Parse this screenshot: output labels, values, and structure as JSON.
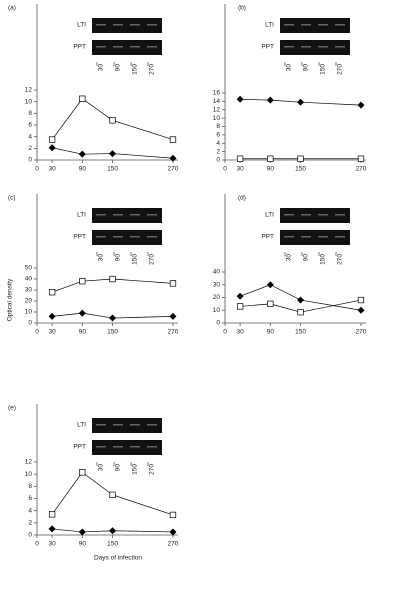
{
  "figure": {
    "y_label": "Optical density",
    "x_label": "Days of infection"
  },
  "chart_data": [
    {
      "type": "line",
      "panel": "(a)",
      "blot": {
        "rows": [
          "LTI",
          "PPT"
        ],
        "lanes": [
          "30",
          "90",
          "150",
          "270"
        ]
      },
      "x": [
        30,
        90,
        150,
        270
      ],
      "series": [
        {
          "marker": "square",
          "color": "#000000",
          "values": [
            3.5,
            10.5,
            6.8,
            3.5
          ]
        },
        {
          "marker": "diamond",
          "color": "#000000",
          "values": [
            2.1,
            1.0,
            1.1,
            0.3
          ]
        }
      ],
      "xlim": [
        0,
        280
      ],
      "xticks": [
        0,
        30,
        90,
        150,
        270
      ],
      "ylim": [
        0,
        12
      ],
      "yticks": [
        0,
        2,
        4,
        6,
        8,
        10,
        12
      ]
    },
    {
      "type": "line",
      "panel": "(b)",
      "blot": {
        "rows": [
          "LTI",
          "PPT"
        ],
        "lanes": [
          "30",
          "90",
          "150",
          "270"
        ]
      },
      "x": [
        30,
        90,
        150,
        270
      ],
      "series": [
        {
          "marker": "square",
          "color": "#000000",
          "values": [
            0.3,
            0.3,
            0.3,
            0.3
          ]
        },
        {
          "marker": "diamond",
          "color": "#000000",
          "values": [
            14.5,
            14.3,
            13.8,
            13.1
          ]
        }
      ],
      "xlim": [
        0,
        280
      ],
      "xticks": [
        0,
        30,
        90,
        150,
        270
      ],
      "ylim": [
        0,
        16
      ],
      "yticks": [
        0,
        2,
        4,
        6,
        8,
        10,
        12,
        14,
        16
      ]
    },
    {
      "type": "line",
      "panel": "(c)",
      "blot": {
        "rows": [
          "LTI",
          "PPT"
        ],
        "lanes": [
          "30",
          "90",
          "150",
          "270"
        ]
      },
      "x": [
        30,
        90,
        150,
        270
      ],
      "series": [
        {
          "marker": "square",
          "color": "#000000",
          "values": [
            28,
            38,
            40,
            36
          ]
        },
        {
          "marker": "diamond",
          "color": "#000000",
          "values": [
            6,
            9,
            4.5,
            6
          ]
        }
      ],
      "xlim": [
        0,
        280
      ],
      "xticks": [
        0,
        30,
        90,
        150,
        270
      ],
      "ylim": [
        0,
        50
      ],
      "yticks": [
        0,
        10,
        20,
        30,
        40,
        50
      ]
    },
    {
      "type": "line",
      "panel": "(d)",
      "blot": {
        "rows": [
          "LTI",
          "PPT"
        ],
        "lanes": [
          "30",
          "90",
          "150",
          "270"
        ]
      },
      "x": [
        30,
        90,
        150,
        270
      ],
      "series": [
        {
          "marker": "square",
          "color": "#000000",
          "values": [
            13,
            15,
            8.5,
            18
          ]
        },
        {
          "marker": "diamond",
          "color": "#000000",
          "values": [
            21,
            30,
            18,
            10
          ]
        }
      ],
      "xlim": [
        0,
        280
      ],
      "xticks": [
        0,
        30,
        90,
        150,
        270
      ],
      "ylim": [
        0,
        40
      ],
      "yticks": [
        0,
        10,
        20,
        30,
        40
      ]
    },
    {
      "type": "line",
      "panel": "(e)",
      "blot": {
        "rows": [
          "LTI",
          "PPT"
        ],
        "lanes": [
          "30",
          "90",
          "150",
          "270"
        ]
      },
      "x": [
        30,
        90,
        150,
        270
      ],
      "series": [
        {
          "marker": "square",
          "color": "#000000",
          "values": [
            3.4,
            10.3,
            6.6,
            3.3
          ]
        },
        {
          "marker": "diamond",
          "color": "#000000",
          "values": [
            1.0,
            0.5,
            0.7,
            0.5
          ]
        }
      ],
      "xlim": [
        0,
        280
      ],
      "xticks": [
        0,
        30,
        90,
        150,
        270
      ],
      "ylim": [
        0,
        12
      ],
      "yticks": [
        0,
        2,
        4,
        6,
        8,
        10,
        12
      ]
    }
  ]
}
